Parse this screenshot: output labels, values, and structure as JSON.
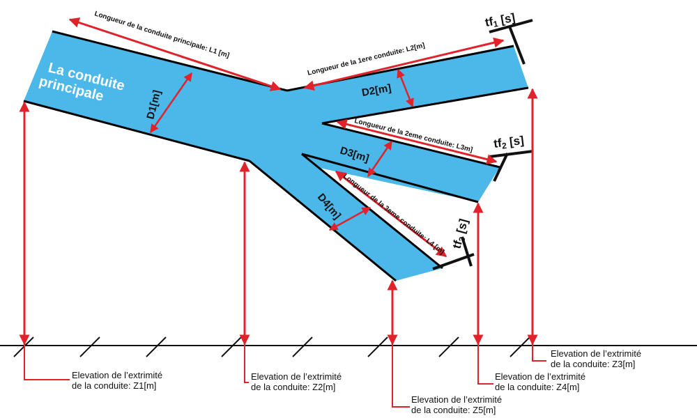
{
  "diagram": {
    "main_label": {
      "line1": "La conduite",
      "line2": "principale"
    },
    "lengths": {
      "l1": "Longueur de la conduite principale: L1 [m]",
      "l2": "Longueur de la 1ere conduite: L2[m]",
      "l3": "Longueur de la 2eme conduite: L3m]",
      "l4": "Longueur de la 3eme conduite: L4 [m]"
    },
    "diameters": {
      "d1": "D1[m]",
      "d2": "D2[m]",
      "d3": "D3[m]",
      "d4": "D4[m]"
    },
    "closure_times": {
      "tf1": {
        "base": "tf",
        "sub": "1",
        "unit": " [s]"
      },
      "tf2": {
        "base": "tf",
        "sub": "2",
        "unit": " [s]"
      },
      "tf3": {
        "base": "tf",
        "sub": "3",
        "unit": " [s]"
      }
    },
    "elevations": {
      "z1": {
        "line1": "Elevation de l’extrimité",
        "line2": "de la conduite: Z1[m]"
      },
      "z2": {
        "line1": "Elevation de l’extrimité",
        "line2": "de la conduite: Z2[m]"
      },
      "z3": {
        "line1": "Elevation de l’extrimité",
        "line2": "de la conduite: Z3[m]"
      },
      "z4": {
        "line1": "Elevation de l’extrimité",
        "line2": "de la conduite: Z4[m]"
      },
      "z5": {
        "line1": "Elevation de l’extrimité",
        "line2": "de la conduite: Z5[m]"
      }
    },
    "colors": {
      "pipe_fill": "#4cb8ea",
      "arrow_red": "#e0222b",
      "outline": "#000000"
    }
  }
}
